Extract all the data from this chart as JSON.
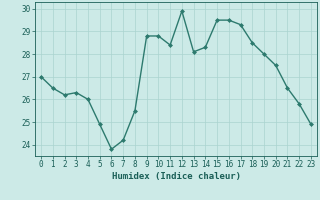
{
  "x": [
    0,
    1,
    2,
    3,
    4,
    5,
    6,
    7,
    8,
    9,
    10,
    11,
    12,
    13,
    14,
    15,
    16,
    17,
    18,
    19,
    20,
    21,
    22,
    23
  ],
  "y": [
    27.0,
    26.5,
    26.2,
    26.3,
    26.0,
    24.9,
    23.8,
    24.2,
    25.5,
    28.8,
    28.8,
    28.4,
    29.9,
    28.1,
    28.3,
    29.5,
    29.5,
    29.3,
    28.5,
    28.0,
    27.5,
    26.5,
    25.8,
    24.9
  ],
  "line_color": "#2d7a6e",
  "marker": "D",
  "marker_size": 2.0,
  "linewidth": 1.0,
  "bg_color": "#cceae7",
  "grid_color": "#aad4d0",
  "xlabel": "Humidex (Indice chaleur)",
  "tick_color": "#1a5f57",
  "ylim": [
    23.5,
    30.3
  ],
  "yticks": [
    24,
    25,
    26,
    27,
    28,
    29,
    30
  ],
  "xticks": [
    0,
    1,
    2,
    3,
    4,
    5,
    6,
    7,
    8,
    9,
    10,
    11,
    12,
    13,
    14,
    15,
    16,
    17,
    18,
    19,
    20,
    21,
    22,
    23
  ],
  "xlabel_fontsize": 6.5,
  "tick_fontsize": 5.5
}
